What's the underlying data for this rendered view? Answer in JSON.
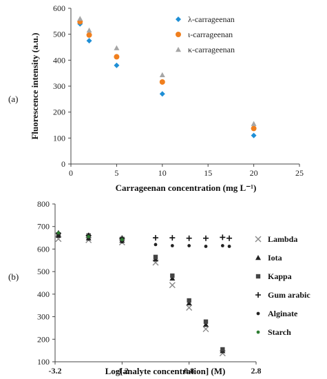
{
  "chart_data": [
    {
      "panel_label": "(a)",
      "type": "scatter",
      "xlabel": "Carrageenan concentration (mg L⁻¹)",
      "ylabel": "Fluorescence intensity (a.u.)",
      "xlim": [
        0,
        25
      ],
      "ylim": [
        0,
        600
      ],
      "xticks": [
        "0",
        "5",
        "10",
        "15",
        "20",
        "25"
      ],
      "yticks": [
        "0",
        "100",
        "200",
        "300",
        "400",
        "500",
        "600"
      ],
      "grid": false,
      "legend_position": "top-right",
      "series": [
        {
          "name": "λ-carrageenan",
          "color": "#1f8fd6",
          "marker": "diamond",
          "x": [
            1,
            2,
            5,
            10,
            20
          ],
          "y": [
            540,
            475,
            380,
            270,
            110
          ]
        },
        {
          "name": "ι-carrageenan",
          "color": "#f07f1e",
          "marker": "circle",
          "x": [
            1,
            2,
            5,
            10,
            20
          ],
          "y": [
            548,
            497,
            413,
            316,
            137
          ]
        },
        {
          "name": "κ-carrageenan",
          "color": "#a6a6a6",
          "marker": "triangle",
          "x": [
            1,
            2,
            5,
            10,
            20
          ],
          "y": [
            560,
            515,
            447,
            343,
            155
          ]
        }
      ]
    },
    {
      "panel_label": "(b)",
      "type": "scatter",
      "xlabel": "Log[analyte concentration] (M)",
      "ylabel": "",
      "xlim": [
        -3.2,
        2.8
      ],
      "ylim": [
        100,
        800
      ],
      "xticks": [
        "-3.2",
        "-1.2",
        "0.8",
        "2.8"
      ],
      "yticks": [
        "100",
        "200",
        "300",
        "400",
        "500",
        "600",
        "700",
        "800"
      ],
      "grid": false,
      "legend_position": "right",
      "series": [
        {
          "name": "Lambda",
          "color": "#888888",
          "marker": "x",
          "x": [
            -3.1,
            -2.2,
            -1.2,
            -0.2,
            0.3,
            0.8,
            1.3,
            1.8
          ],
          "y": [
            645,
            640,
            630,
            540,
            440,
            340,
            245,
            138
          ]
        },
        {
          "name": "Iota",
          "color": "#222222",
          "marker": "triangle",
          "x": [
            -3.1,
            -2.2,
            -1.2,
            -0.2,
            0.3,
            0.8,
            1.3,
            1.8
          ],
          "y": [
            660,
            648,
            638,
            555,
            470,
            360,
            265,
            148
          ]
        },
        {
          "name": "Kappa",
          "color": "#444444",
          "marker": "square",
          "x": [
            -3.1,
            -2.2,
            -1.2,
            -0.2,
            0.3,
            0.8,
            1.3,
            1.8
          ],
          "y": [
            665,
            660,
            645,
            565,
            482,
            372,
            278,
            155
          ]
        },
        {
          "name": "Gum arabic",
          "color": "#111111",
          "marker": "plus",
          "x": [
            -3.1,
            -2.2,
            -1.2,
            -0.2,
            0.3,
            0.8,
            1.3,
            1.8,
            2.0
          ],
          "y": [
            670,
            660,
            648,
            650,
            650,
            648,
            648,
            652,
            648
          ]
        },
        {
          "name": "Alginate",
          "color": "#222222",
          "marker": "dot",
          "x": [
            -3.1,
            -2.2,
            -1.2,
            -0.2,
            0.3,
            0.8,
            1.3,
            1.8,
            2.0
          ],
          "y": [
            658,
            645,
            632,
            620,
            615,
            615,
            612,
            615,
            612
          ]
        },
        {
          "name": "Starch",
          "color": "#2e7d32",
          "marker": "dot",
          "x": [
            -3.1,
            -2.2,
            -1.2
          ],
          "y": [
            672,
            655,
            642
          ]
        }
      ]
    }
  ]
}
